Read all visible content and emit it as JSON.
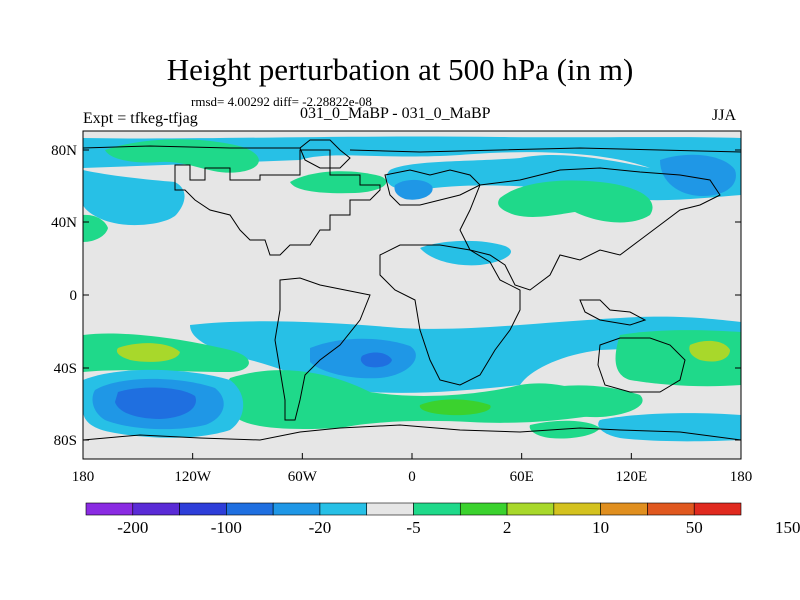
{
  "title": "Height perturbation at 500 hPa (in m)",
  "stats": "rmsd= 4.00292 diff= -2.28822e-08",
  "expt_label": "Expt = tfkeg-tfjag",
  "runs_label": "031_0_MaBP - 031_0_MaBP",
  "season": "JJA",
  "lat_ticks": [
    "80N",
    "40N",
    "0",
    "40S",
    "80S"
  ],
  "lon_ticks": [
    "180",
    "120W",
    "60W",
    "0",
    "60E",
    "120E",
    "180"
  ],
  "colorbar": {
    "labels": [
      "-200",
      "-100",
      "-20",
      "-5",
      "2",
      "10",
      "50",
      "150"
    ],
    "colors": [
      "#8a2be2",
      "#5a2bd6",
      "#2e3ed9",
      "#1f6fe0",
      "#1f97e6",
      "#27c0e6",
      "#e6e6e6",
      "#1fd98a",
      "#3bd22e",
      "#a8d82b",
      "#d4c21f",
      "#e08f1f",
      "#e0581f",
      "#e02a1f"
    ]
  },
  "field_colors": {
    "background": "#e6e6e6",
    "light_negative": "#27c0e6",
    "medium_negative": "#1f97e6",
    "strong_negative": "#1f6fe0",
    "light_positive": "#1fd98a",
    "medium_positive": "#3bd22e",
    "strong_positive": "#a8d82b"
  }
}
